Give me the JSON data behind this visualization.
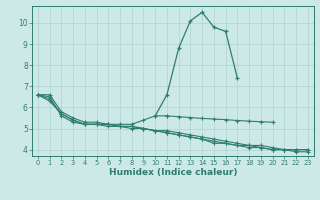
{
  "xlabel": "Humidex (Indice chaleur)",
  "color": "#2e7d6e",
  "bg_color": "#cce9e7",
  "grid_color": "#afd4d0",
  "ylim": [
    3.7,
    10.8
  ],
  "xlim": [
    -0.5,
    23.5
  ],
  "yticks": [
    4,
    5,
    6,
    7,
    8,
    9,
    10
  ],
  "xticks": [
    0,
    1,
    2,
    3,
    4,
    5,
    6,
    7,
    8,
    9,
    10,
    11,
    12,
    13,
    14,
    15,
    16,
    17,
    18,
    19,
    20,
    21,
    22,
    23
  ],
  "main_x": [
    10,
    11,
    12,
    13,
    14,
    15,
    16,
    17
  ],
  "main_y": [
    5.6,
    6.6,
    8.8,
    10.1,
    10.5,
    9.8,
    9.6,
    7.4
  ],
  "curve_a_x": [
    0,
    1,
    2,
    3,
    4,
    5,
    6,
    7,
    8,
    9,
    10,
    11
  ],
  "curve_a_y": [
    6.6,
    6.6,
    5.8,
    5.5,
    5.3,
    5.3,
    5.2,
    5.2,
    5.2,
    5.4,
    5.6,
    5.6
  ],
  "curve_flat_x": [
    11,
    12,
    13,
    14,
    15,
    16,
    17,
    18,
    19,
    20
  ],
  "curve_flat_y": [
    5.6,
    5.56,
    5.52,
    5.48,
    5.45,
    5.42,
    5.38,
    5.35,
    5.32,
    5.3
  ],
  "curve_b_x": [
    0,
    1,
    2,
    3,
    4,
    5,
    6,
    7,
    8,
    9,
    10,
    11,
    12,
    13,
    14,
    15,
    16,
    17,
    18,
    19,
    20,
    21,
    22,
    23
  ],
  "curve_b_y": [
    6.6,
    6.5,
    5.6,
    5.3,
    5.2,
    5.2,
    5.2,
    5.1,
    5.1,
    5.0,
    4.9,
    4.9,
    4.8,
    4.7,
    4.6,
    4.5,
    4.4,
    4.3,
    4.2,
    4.2,
    4.1,
    4.0,
    4.0,
    4.0
  ],
  "curve_c_x": [
    0,
    1,
    2,
    3,
    4,
    5,
    6,
    7,
    8,
    9,
    10,
    11,
    12,
    13,
    14,
    15,
    16,
    17,
    18,
    19,
    20,
    21,
    22,
    23
  ],
  "curve_c_y": [
    6.6,
    6.4,
    5.7,
    5.4,
    5.2,
    5.2,
    5.2,
    5.1,
    5.1,
    5.0,
    4.9,
    4.8,
    4.7,
    4.6,
    4.5,
    4.4,
    4.3,
    4.2,
    4.1,
    4.1,
    4.0,
    4.0,
    4.0,
    4.0
  ],
  "curve_d_x": [
    0,
    1,
    2,
    3,
    4,
    5,
    6,
    7,
    8,
    9,
    10,
    11,
    12,
    13,
    14,
    15,
    16,
    17,
    18,
    19,
    20,
    21,
    22,
    23
  ],
  "curve_d_y": [
    6.6,
    6.3,
    5.7,
    5.4,
    5.2,
    5.2,
    5.1,
    5.1,
    5.0,
    5.0,
    4.9,
    4.8,
    4.7,
    4.6,
    4.5,
    4.3,
    4.3,
    4.2,
    4.2,
    4.1,
    4.0,
    4.0,
    3.9,
    3.9
  ]
}
